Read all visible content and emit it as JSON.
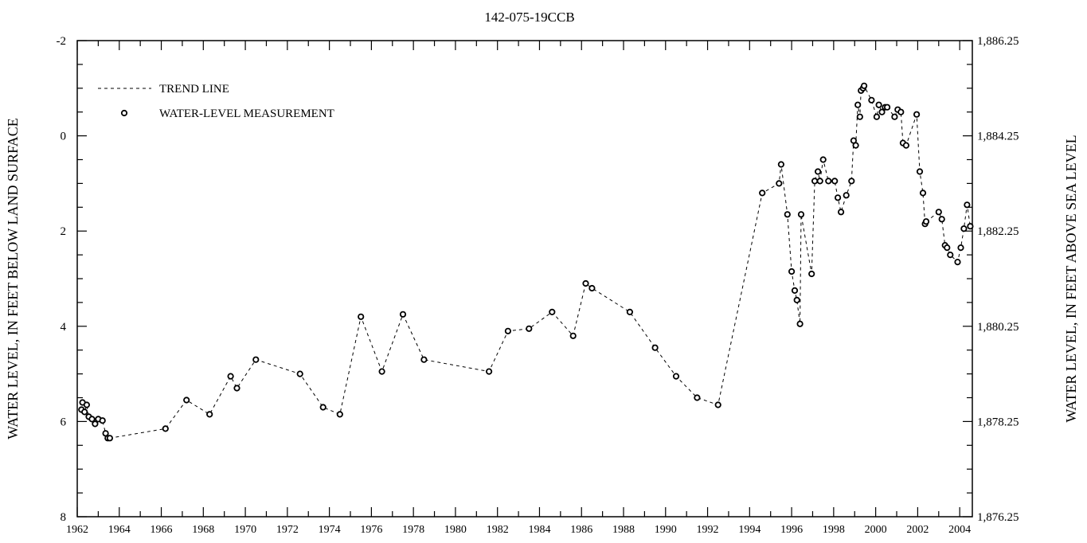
{
  "chart_data": {
    "type": "scatter",
    "title": "142-075-19CCB",
    "ylabel_left": "WATER LEVEL, IN FEET BELOW LAND SURFACE",
    "ylabel_right": "WATER LEVEL, IN FEET ABOVE SEA LEVEL",
    "xlim": [
      1962,
      2004.6
    ],
    "ylim_left": [
      -2,
      8
    ],
    "left_axis_inverted": true,
    "ylim_right": [
      1886.25,
      1876.25
    ],
    "x_ticks": [
      "1962",
      "1964",
      "1966",
      "1968",
      "1970",
      "1972",
      "1974",
      "1976",
      "1978",
      "1980",
      "1982",
      "1984",
      "1986",
      "1988",
      "1990",
      "1992",
      "1994",
      "1996",
      "1998",
      "2000",
      "2002",
      "2004"
    ],
    "y_ticks_left": [
      "-2",
      "0",
      "2",
      "4",
      "6",
      "8"
    ],
    "y_ticks_right": [
      "1,886.25",
      "1,884.25",
      "1,882.25",
      "1,880.25",
      "1,878.25",
      "1,876.25"
    ],
    "legend": {
      "placement": "top-left",
      "trend_label": "TREND LINE",
      "measurement_label": "WATER-LEVEL MEASUREMENT"
    },
    "grid": false,
    "series": [
      {
        "name": "WATER-LEVEL MEASUREMENT",
        "points": [
          [
            1962.2,
            5.75
          ],
          [
            1962.25,
            5.6
          ],
          [
            1962.35,
            5.8
          ],
          [
            1962.45,
            5.65
          ],
          [
            1962.55,
            5.9
          ],
          [
            1962.7,
            5.95
          ],
          [
            1962.85,
            6.05
          ],
          [
            1963.0,
            5.95
          ],
          [
            1963.2,
            5.98
          ],
          [
            1963.35,
            6.25
          ],
          [
            1963.45,
            6.35
          ],
          [
            1963.55,
            6.35
          ],
          [
            1966.2,
            6.15
          ],
          [
            1967.2,
            5.55
          ],
          [
            1968.3,
            5.85
          ],
          [
            1969.3,
            5.05
          ],
          [
            1969.6,
            5.3
          ],
          [
            1970.5,
            4.7
          ],
          [
            1972.6,
            5.0
          ],
          [
            1973.7,
            5.7
          ],
          [
            1974.5,
            5.85
          ],
          [
            1975.5,
            3.8
          ],
          [
            1976.5,
            4.95
          ],
          [
            1977.5,
            3.75
          ],
          [
            1978.5,
            4.7
          ],
          [
            1981.6,
            4.95
          ],
          [
            1982.5,
            4.1
          ],
          [
            1983.5,
            4.05
          ],
          [
            1984.6,
            3.7
          ],
          [
            1985.6,
            4.2
          ],
          [
            1986.2,
            3.1
          ],
          [
            1986.5,
            3.2
          ],
          [
            1988.3,
            3.7
          ],
          [
            1989.5,
            4.45
          ],
          [
            1990.5,
            5.05
          ],
          [
            1991.5,
            5.5
          ],
          [
            1992.5,
            5.65
          ],
          [
            1994.6,
            1.2
          ],
          [
            1995.4,
            1.0
          ],
          [
            1995.5,
            0.6
          ],
          [
            1995.8,
            1.65
          ],
          [
            1996.0,
            2.85
          ],
          [
            1996.15,
            3.25
          ],
          [
            1996.25,
            3.45
          ],
          [
            1996.4,
            3.95
          ],
          [
            1996.45,
            1.65
          ],
          [
            1996.95,
            2.9
          ],
          [
            1997.1,
            0.95
          ],
          [
            1997.25,
            0.75
          ],
          [
            1997.35,
            0.95
          ],
          [
            1997.5,
            0.5
          ],
          [
            1997.75,
            0.95
          ],
          [
            1998.05,
            0.95
          ],
          [
            1998.2,
            1.3
          ],
          [
            1998.35,
            1.6
          ],
          [
            1998.6,
            1.25
          ],
          [
            1998.85,
            0.95
          ],
          [
            1998.95,
            0.1
          ],
          [
            1999.05,
            0.2
          ],
          [
            1999.15,
            -0.65
          ],
          [
            1999.25,
            -0.4
          ],
          [
            1999.3,
            -0.95
          ],
          [
            1999.4,
            -1.0
          ],
          [
            1999.45,
            -1.05
          ],
          [
            1999.8,
            -0.75
          ],
          [
            2000.05,
            -0.4
          ],
          [
            2000.15,
            -0.65
          ],
          [
            2000.3,
            -0.5
          ],
          [
            2000.45,
            -0.6
          ],
          [
            2000.55,
            -0.6
          ],
          [
            2000.9,
            -0.4
          ],
          [
            2001.05,
            -0.55
          ],
          [
            2001.2,
            -0.5
          ],
          [
            2001.3,
            0.15
          ],
          [
            2001.45,
            0.2
          ],
          [
            2001.95,
            -0.45
          ],
          [
            2002.1,
            0.75
          ],
          [
            2002.25,
            1.2
          ],
          [
            2002.35,
            1.85
          ],
          [
            2002.4,
            1.8
          ],
          [
            2003.0,
            1.6
          ],
          [
            2003.15,
            1.75
          ],
          [
            2003.3,
            2.3
          ],
          [
            2003.4,
            2.35
          ],
          [
            2003.55,
            2.5
          ],
          [
            2003.9,
            2.65
          ],
          [
            2004.05,
            2.35
          ],
          [
            2004.2,
            1.95
          ],
          [
            2004.35,
            1.45
          ],
          [
            2004.5,
            1.9
          ]
        ]
      }
    ]
  }
}
